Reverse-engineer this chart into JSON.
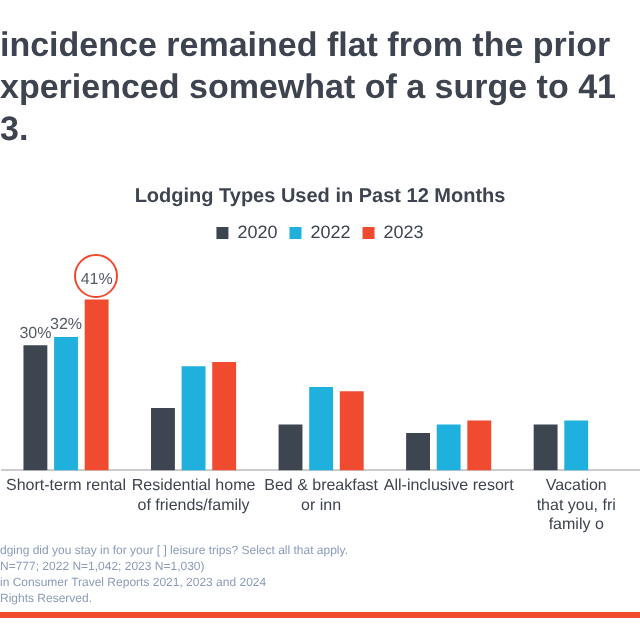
{
  "chart_data": {
    "type": "bar",
    "title": "incidence remained flat from the prior\nxperienced somewhat of a surge to 41\n3.",
    "subtitle": "Lodging Types Used in Past 12 Months",
    "categories": [
      "Short-term rental",
      "Residential home\nof friends/family",
      "Bed & breakfast\nor inn",
      "All-inclusive resort",
      "Vacation\nthat you, fri\nfamily o"
    ],
    "series": [
      {
        "name": "2020",
        "color": "#3d4550",
        "values": [
          30,
          15,
          11,
          9,
          11
        ],
        "value_labels": [
          "30%",
          null,
          null,
          null,
          null
        ]
      },
      {
        "name": "2022",
        "color": "#1fb0de",
        "values": [
          32,
          25,
          20,
          11,
          12
        ],
        "value_labels": [
          "32%",
          null,
          null,
          null,
          null
        ]
      },
      {
        "name": "2023",
        "color": "#f04a2f",
        "values": [
          41,
          26,
          19,
          12,
          null
        ],
        "value_labels": [
          "41%",
          null,
          null,
          null,
          null
        ]
      }
    ],
    "legend": "top",
    "grid": false,
    "annotations": [
      "dging did you stay in for your [ ] leisure trips? Select all that apply.",
      "N=777; 2022 N=1,042; 2023 N=1,030)",
      "in Consumer Travel Reports 2021, 2023 and 2024",
      "Rights Reserved."
    ]
  }
}
